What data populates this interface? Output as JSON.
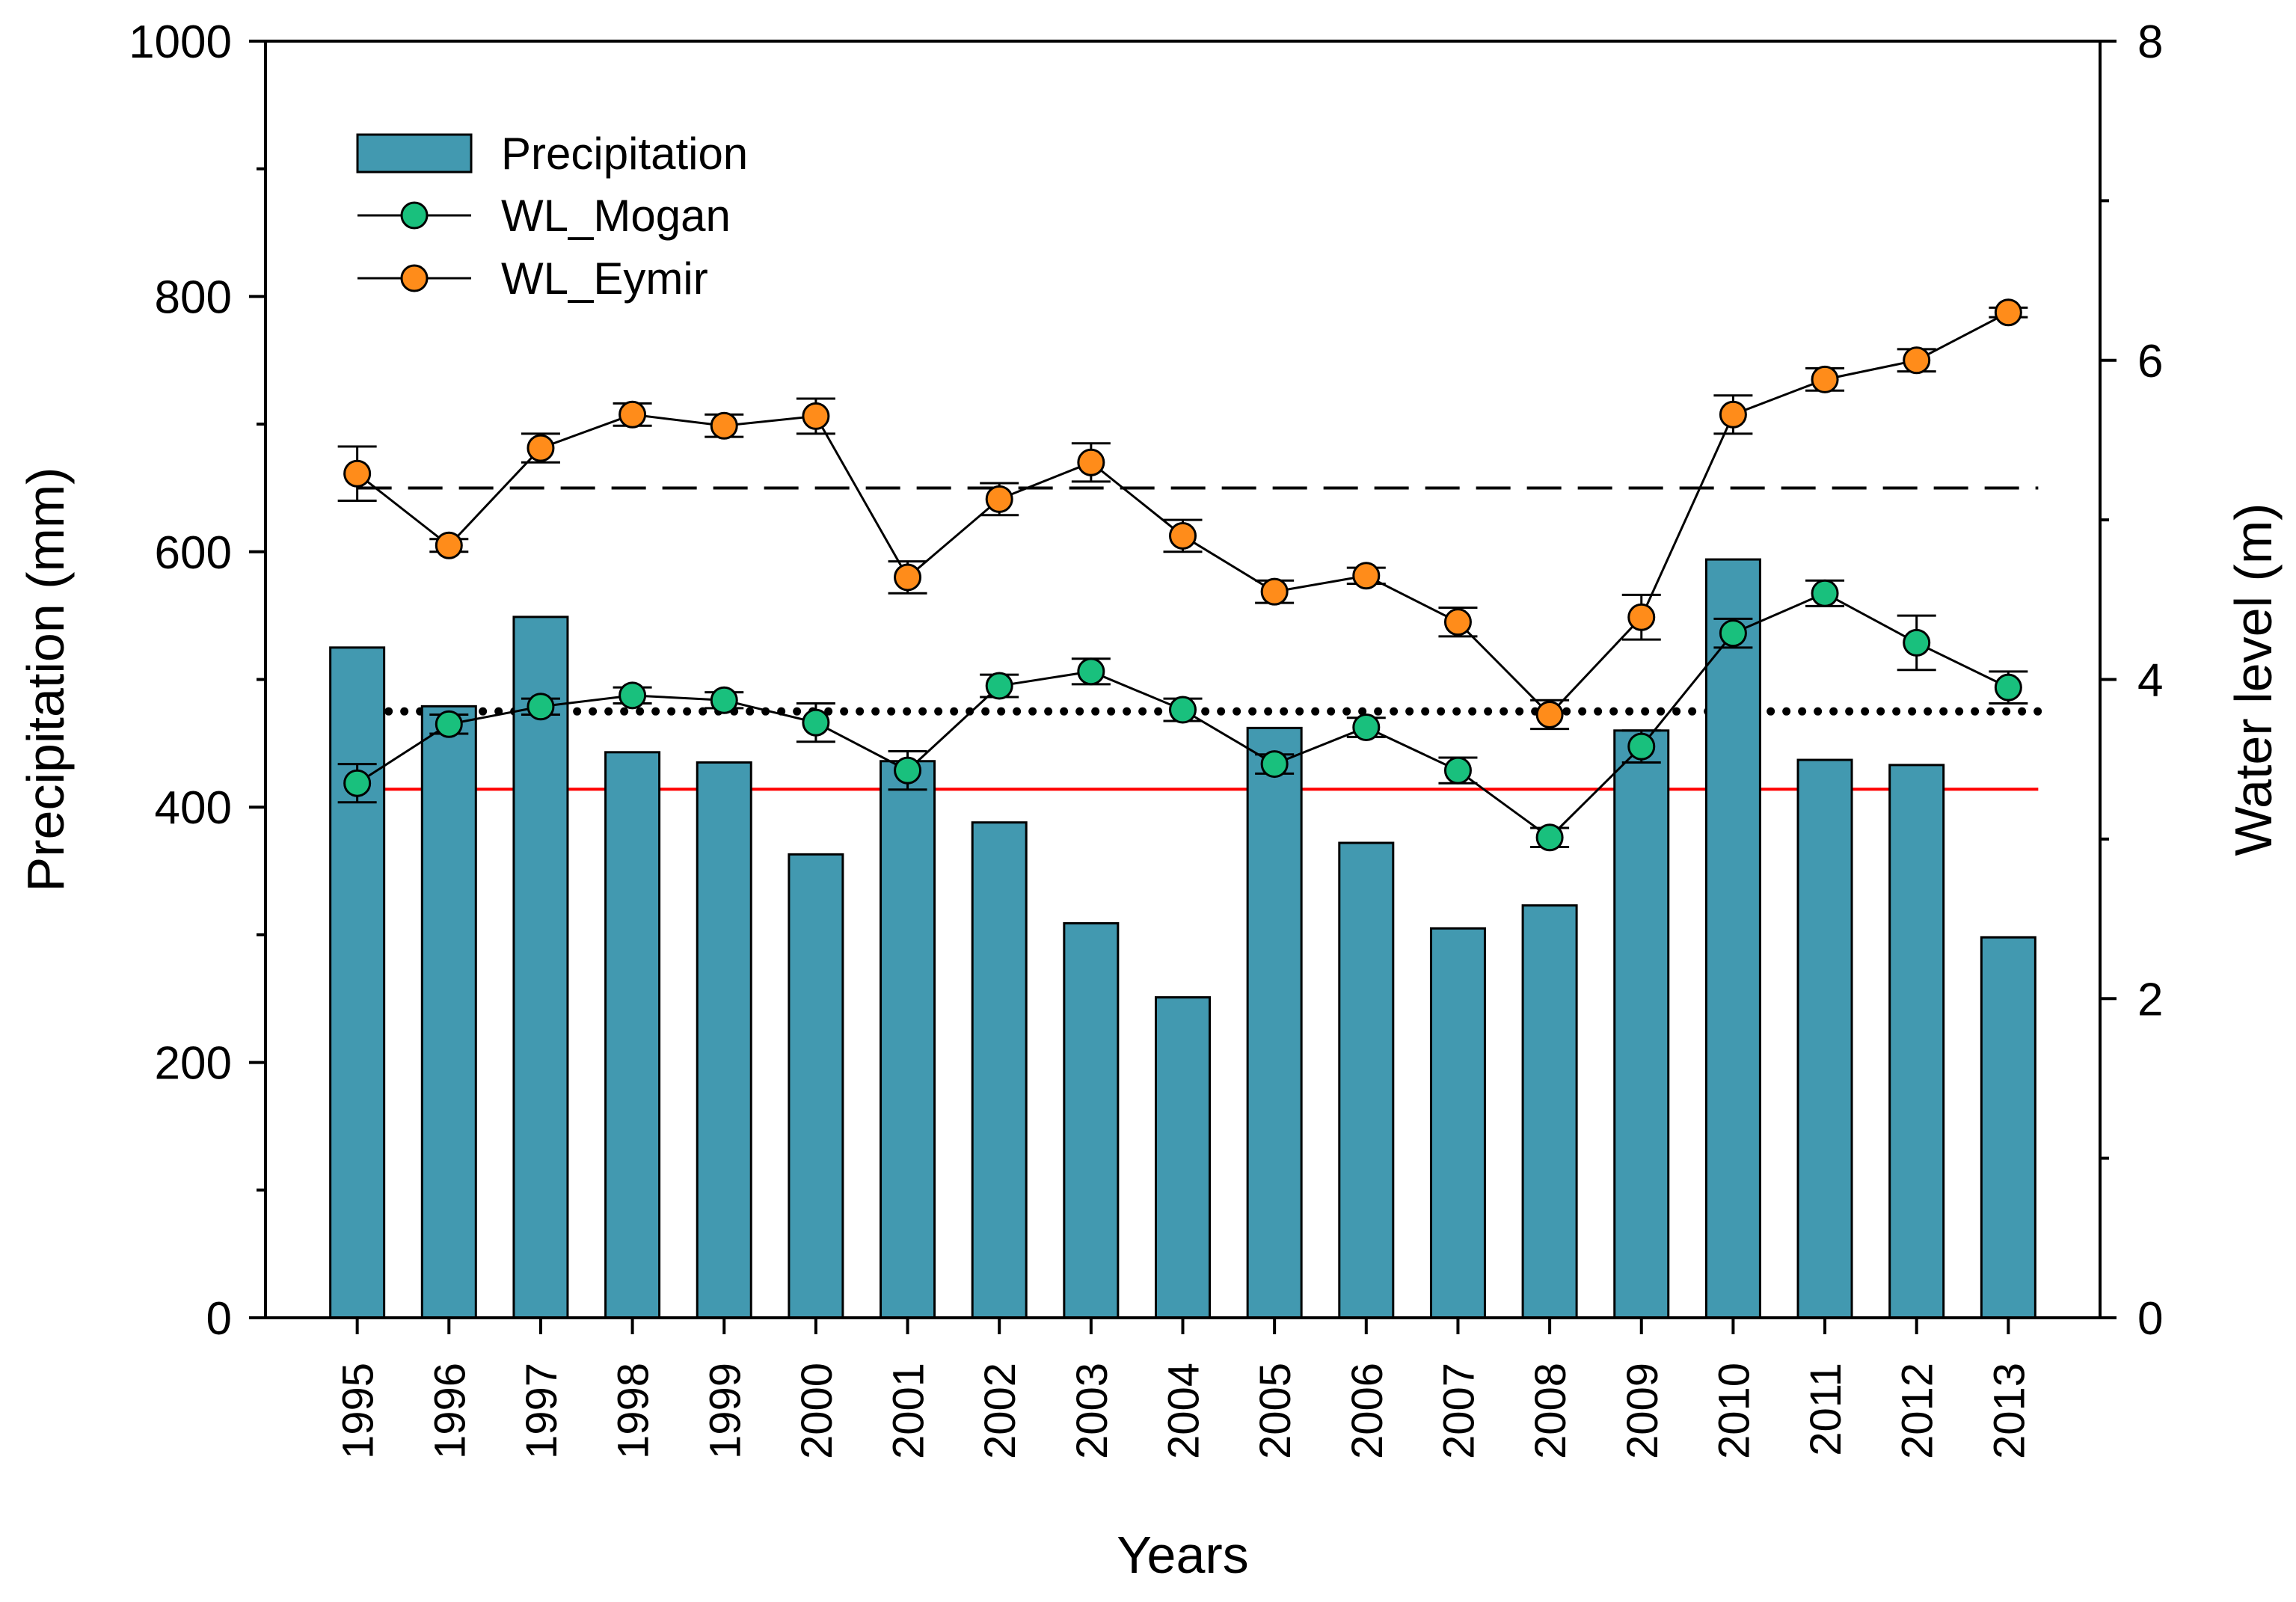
{
  "chart_data": {
    "type": "bar+line",
    "categories": [
      "1995",
      "1996",
      "1997",
      "1998",
      "1999",
      "2000",
      "2001",
      "2002",
      "2003",
      "2004",
      "2005",
      "2006",
      "2007",
      "2008",
      "2009",
      "2010",
      "2011",
      "2012",
      "2013"
    ],
    "xlabel": "Years",
    "ylabel_left": "Precipitation (mm)",
    "ylabel_right": "Water level (m)",
    "ylim_left": [
      0,
      1000
    ],
    "ylim_right": [
      0,
      8
    ],
    "yticks_left": [
      "0",
      "200",
      "400",
      "600",
      "800",
      "1000"
    ],
    "yticks_right": [
      "0",
      "2",
      "4",
      "6",
      "8"
    ],
    "series": [
      {
        "name": "Precipitation",
        "kind": "bar",
        "axis": "left",
        "color": "#4299B0",
        "values": [
          525,
          479,
          549,
          443,
          435,
          363,
          436,
          388,
          309,
          251,
          462,
          372,
          305,
          323,
          460,
          594,
          437,
          433,
          298
        ]
      },
      {
        "name": "WL_Mogan",
        "kind": "line",
        "axis": "right",
        "color": "#19C07D",
        "values": [
          3.35,
          3.72,
          3.83,
          3.9,
          3.87,
          3.73,
          3.43,
          3.96,
          4.05,
          3.81,
          3.47,
          3.7,
          3.43,
          3.01,
          3.58,
          4.29,
          4.54,
          4.23,
          3.95
        ],
        "errors": [
          0.12,
          0.06,
          0.05,
          0.05,
          0.05,
          0.12,
          0.12,
          0.07,
          0.08,
          0.07,
          0.06,
          0.06,
          0.08,
          0.06,
          0.1,
          0.09,
          0.08,
          0.17,
          0.1
        ]
      },
      {
        "name": "WL_Eymir",
        "kind": "line",
        "axis": "right",
        "color": "#FF8C1A",
        "values": [
          5.29,
          4.84,
          5.45,
          5.66,
          5.59,
          5.65,
          4.64,
          5.13,
          5.36,
          4.9,
          4.55,
          4.65,
          4.36,
          3.78,
          4.39,
          5.66,
          5.88,
          6.0,
          6.3
        ],
        "errors": [
          0.17,
          0.04,
          0.09,
          0.07,
          0.07,
          0.11,
          0.1,
          0.1,
          0.12,
          0.1,
          0.07,
          0.05,
          0.09,
          0.09,
          0.14,
          0.12,
          0.07,
          0.07,
          0.03
        ]
      }
    ],
    "reference_lines": [
      {
        "name": "mean-precipitation",
        "axis": "left",
        "value": 414,
        "style": "solid",
        "color": "#FF0000"
      },
      {
        "name": "mean-wl-mogan",
        "axis": "right",
        "value": 3.8,
        "style": "dotted",
        "color": "#000000"
      },
      {
        "name": "mean-wl-eymir",
        "axis": "right",
        "value": 5.2,
        "style": "dashed",
        "color": "#000000"
      }
    ],
    "legend": {
      "position": "top-left",
      "entries": [
        "Precipitation",
        "WL_Mogan",
        "WL_Eymir"
      ]
    }
  }
}
